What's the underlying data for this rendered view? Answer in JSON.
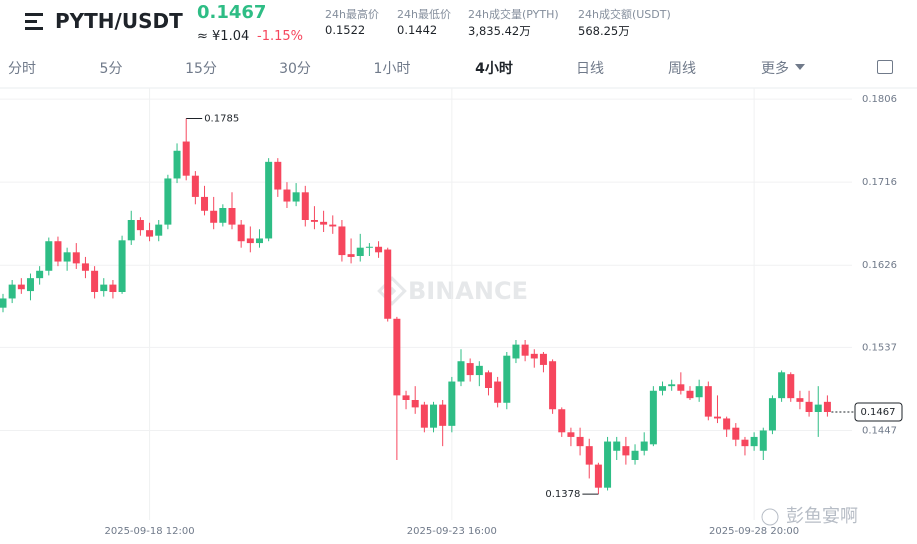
{
  "header": {
    "pair": "PYTH/USDT",
    "price": "0.1467",
    "cny": "≈ ¥1.04",
    "change": "-1.15%",
    "stats": [
      {
        "label": "24h最高价",
        "value": "0.1522"
      },
      {
        "label": "24h最低价",
        "value": "0.1442"
      },
      {
        "label": "24h成交量(PYTH)",
        "value": "3,835.42万"
      },
      {
        "label": "24h成交额(USDT)",
        "value": "568.25万"
      }
    ]
  },
  "tabs": [
    "分时",
    "5分",
    "15分",
    "30分",
    "1小时",
    "4小时",
    "日线",
    "周线",
    "更多"
  ],
  "watermarks": [
    "BINANCE",
    "彭鱼宴啊"
  ],
  "chart_data": {
    "type": "candlestick",
    "categories": [
      null,
      null,
      null,
      null,
      null,
      null,
      null,
      null,
      null,
      null,
      null,
      null,
      null,
      null,
      null,
      null,
      "2025-09-18 12:00",
      null,
      null,
      null,
      null,
      null,
      null,
      null,
      null,
      null,
      null,
      null,
      null,
      null,
      null,
      null,
      null,
      null,
      null,
      null,
      null,
      null,
      null,
      null,
      null,
      null,
      null,
      null,
      null,
      null,
      null,
      null,
      null,
      "2025-09-23 16:00",
      null,
      null,
      null,
      null,
      null,
      null,
      null,
      null,
      null,
      null,
      null,
      null,
      null,
      null,
      null,
      null,
      null,
      null,
      null,
      null,
      null,
      null,
      null,
      null,
      null,
      null,
      null,
      null,
      null,
      null,
      null,
      null,
      "2025-09-28 20:00",
      null,
      null,
      null,
      null,
      null,
      null,
      null,
      null
    ],
    "open": [
      0.158,
      0.159,
      0.1605,
      0.1598,
      0.1612,
      0.162,
      0.1652,
      0.163,
      0.164,
      0.1628,
      0.162,
      0.1598,
      0.1605,
      0.1597,
      0.1653,
      0.1675,
      0.1664,
      0.1658,
      0.167,
      0.172,
      0.176,
      0.1723,
      0.17,
      0.1685,
      0.1672,
      0.1688,
      0.167,
      0.1655,
      0.165,
      0.1655,
      0.1738,
      0.1708,
      0.1695,
      0.1705,
      0.1675,
      0.1673,
      0.167,
      0.1668,
      0.1638,
      0.1636,
      0.1645,
      0.1646,
      0.1643,
      0.1568,
      0.1485,
      0.148,
      0.1475,
      0.145,
      0.1475,
      0.1452,
      0.15,
      0.152,
      0.1507,
      0.151,
      0.15,
      0.1477,
      0.1525,
      0.154,
      0.153,
      0.153,
      0.1522,
      0.147,
      0.1445,
      0.144,
      0.143,
      0.141,
      0.1385,
      0.1425,
      0.143,
      0.1415,
      0.1425,
      0.1432,
      0.149,
      0.1495,
      0.1497,
      0.149,
      0.1483,
      0.1495,
      0.1462,
      0.146,
      0.145,
      0.1437,
      0.143,
      0.1425,
      0.1447,
      0.1482,
      0.1508,
      0.1482,
      0.1478,
      0.1467,
      0.1478
    ],
    "high": [
      0.1595,
      0.161,
      0.1612,
      0.1617,
      0.1625,
      0.1656,
      0.1657,
      0.1645,
      0.165,
      0.1635,
      0.1625,
      0.1612,
      0.161,
      0.1658,
      0.1685,
      0.1678,
      0.1672,
      0.1675,
      0.1724,
      0.1758,
      0.1785,
      0.1728,
      0.1712,
      0.17,
      0.1692,
      0.1705,
      0.1675,
      0.1668,
      0.1665,
      0.1742,
      0.1742,
      0.1716,
      0.1715,
      0.1712,
      0.169,
      0.1685,
      0.168,
      0.1675,
      0.1655,
      0.166,
      0.165,
      0.1652,
      0.1645,
      0.157,
      0.149,
      0.1495,
      0.1478,
      0.1478,
      0.148,
      0.1505,
      0.1535,
      0.1525,
      0.1522,
      0.1512,
      0.1505,
      0.1532,
      0.1545,
      0.1545,
      0.1535,
      0.1532,
      0.1524,
      0.1472,
      0.145,
      0.145,
      0.1438,
      0.1412,
      0.144,
      0.144,
      0.144,
      0.1432,
      0.1445,
      0.1495,
      0.15,
      0.1502,
      0.151,
      0.1495,
      0.1502,
      0.15,
      0.1485,
      0.1462,
      0.1455,
      0.144,
      0.1445,
      0.145,
      0.1485,
      0.1512,
      0.151,
      0.149,
      0.149,
      0.1495,
      0.1485
    ],
    "low": [
      0.1575,
      0.1585,
      0.1595,
      0.1588,
      0.1605,
      0.1615,
      0.1625,
      0.162,
      0.1622,
      0.1612,
      0.159,
      0.1592,
      0.159,
      0.1595,
      0.1648,
      0.1658,
      0.1652,
      0.1652,
      0.1665,
      0.1715,
      0.1718,
      0.1692,
      0.168,
      0.1665,
      0.1668,
      0.1665,
      0.1645,
      0.164,
      0.1645,
      0.1652,
      0.17,
      0.1688,
      0.169,
      0.1668,
      0.1665,
      0.1662,
      0.166,
      0.163,
      0.1628,
      0.163,
      0.1636,
      0.1634,
      0.1565,
      0.1415,
      0.147,
      0.1465,
      0.1445,
      0.1445,
      0.143,
      0.1445,
      0.1495,
      0.15,
      0.1495,
      0.1485,
      0.1472,
      0.147,
      0.152,
      0.1522,
      0.1515,
      0.151,
      0.1465,
      0.144,
      0.143,
      0.142,
      0.1395,
      0.1378,
      0.1382,
      0.1415,
      0.141,
      0.141,
      0.142,
      0.143,
      0.1485,
      0.149,
      0.1486,
      0.148,
      0.1478,
      0.1458,
      0.1455,
      0.144,
      0.143,
      0.142,
      0.1425,
      0.1415,
      0.1443,
      0.1478,
      0.1478,
      0.147,
      0.1462,
      0.144,
      0.1462
    ],
    "close": [
      0.159,
      0.1605,
      0.16,
      0.1612,
      0.162,
      0.1652,
      0.163,
      0.164,
      0.1628,
      0.162,
      0.1597,
      0.1605,
      0.1597,
      0.1653,
      0.1675,
      0.1664,
      0.1657,
      0.167,
      0.172,
      0.175,
      0.1723,
      0.17,
      0.1685,
      0.1672,
      0.1688,
      0.167,
      0.1652,
      0.165,
      0.1655,
      0.1738,
      0.1708,
      0.1695,
      0.1705,
      0.1675,
      0.1673,
      0.167,
      0.1668,
      0.1637,
      0.1635,
      0.1645,
      0.1646,
      0.164,
      0.1568,
      0.1485,
      0.148,
      0.1472,
      0.145,
      0.1475,
      0.1452,
      0.15,
      0.1522,
      0.1507,
      0.1517,
      0.1493,
      0.1477,
      0.1528,
      0.154,
      0.1528,
      0.1525,
      0.1518,
      0.147,
      0.1445,
      0.144,
      0.143,
      0.141,
      0.1385,
      0.1435,
      0.1435,
      0.142,
      0.1425,
      0.1435,
      0.149,
      0.1495,
      0.1497,
      0.149,
      0.1482,
      0.1495,
      0.1462,
      0.146,
      0.1448,
      0.1437,
      0.143,
      0.144,
      0.1447,
      0.1482,
      0.151,
      0.1482,
      0.1478,
      0.1467,
      0.1475,
      0.1467
    ],
    "up_color": "#2ebd85",
    "down_color": "#f6465d",
    "ylim": [
      0.135,
      0.1818
    ],
    "yticks": [
      0.1806,
      0.1716,
      0.1626,
      0.1537,
      0.1447
    ],
    "grid": true,
    "last_price": 0.1467,
    "max_annotation": 0.1785,
    "min_annotation": 0.1378
  }
}
